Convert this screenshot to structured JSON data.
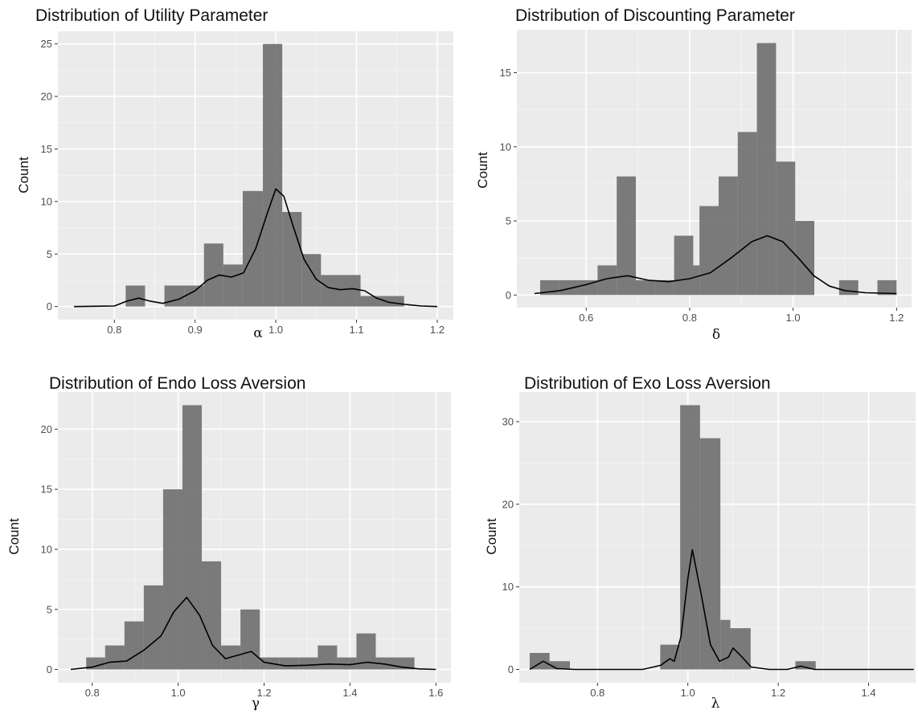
{
  "chart_data": [
    {
      "type": "bar",
      "title": "Distribution of Utility Parameter",
      "xlabel": "α",
      "ylabel": "Count",
      "xlim": [
        0.73,
        1.22
      ],
      "ylim": [
        -1.25,
        26.2
      ],
      "xticks": [
        0.8,
        0.9,
        1.0,
        1.1,
        1.2
      ],
      "xtick_labels": [
        "0.8",
        "0.9",
        "1.0",
        "1.1",
        "1.2"
      ],
      "yticks": [
        0,
        5,
        10,
        15,
        20,
        25
      ],
      "ytick_labels": [
        "0",
        "5",
        "10",
        "15",
        "20",
        "25"
      ],
      "grid": true,
      "bins": [
        {
          "x0": 0.814,
          "x1": 0.838,
          "count": 2
        },
        {
          "x0": 0.838,
          "x1": 0.862,
          "count": 0
        },
        {
          "x0": 0.862,
          "x1": 0.887,
          "count": 2
        },
        {
          "x0": 0.887,
          "x1": 0.911,
          "count": 2
        },
        {
          "x0": 0.911,
          "x1": 0.935,
          "count": 6
        },
        {
          "x0": 0.935,
          "x1": 0.959,
          "count": 4
        },
        {
          "x0": 0.959,
          "x1": 0.984,
          "count": 11
        },
        {
          "x0": 0.984,
          "x1": 1.008,
          "count": 25
        },
        {
          "x0": 1.008,
          "x1": 1.032,
          "count": 9
        },
        {
          "x0": 1.032,
          "x1": 1.056,
          "count": 5
        },
        {
          "x0": 1.056,
          "x1": 1.081,
          "count": 3
        },
        {
          "x0": 1.081,
          "x1": 1.105,
          "count": 3
        },
        {
          "x0": 1.105,
          "x1": 1.129,
          "count": 1
        },
        {
          "x0": 1.129,
          "x1": 1.159,
          "count": 1
        }
      ],
      "density_curve": {
        "x": [
          0.75,
          0.8,
          0.815,
          0.83,
          0.845,
          0.86,
          0.88,
          0.9,
          0.915,
          0.93,
          0.945,
          0.96,
          0.975,
          0.99,
          1.0,
          1.01,
          1.02,
          1.035,
          1.05,
          1.065,
          1.08,
          1.095,
          1.11,
          1.125,
          1.14,
          1.16,
          1.18,
          1.2
        ],
        "y": [
          0.0,
          0.05,
          0.5,
          0.8,
          0.5,
          0.3,
          0.7,
          1.5,
          2.5,
          3.0,
          2.8,
          3.2,
          5.5,
          9.0,
          11.2,
          10.5,
          8.0,
          4.5,
          2.6,
          1.8,
          1.6,
          1.7,
          1.5,
          0.8,
          0.4,
          0.2,
          0.05,
          0.0
        ]
      }
    },
    {
      "type": "bar",
      "title": "Distribution of Discounting Parameter",
      "xlabel": "δ",
      "ylabel": "Count",
      "xlim": [
        0.466,
        1.229
      ],
      "ylim": [
        -0.85,
        17.9
      ],
      "xticks": [
        0.6,
        0.8,
        1.0,
        1.2
      ],
      "xtick_labels": [
        "0.6",
        "0.8",
        "1.0",
        "1.2"
      ],
      "yticks": [
        0,
        5,
        10,
        15
      ],
      "ytick_labels": [
        "0",
        "5",
        "10",
        "15"
      ],
      "grid": true,
      "bins": [
        {
          "x0": 0.511,
          "x1": 0.548,
          "count": 1
        },
        {
          "x0": 0.548,
          "x1": 0.585,
          "count": 1
        },
        {
          "x0": 0.585,
          "x1": 0.622,
          "count": 1
        },
        {
          "x0": 0.622,
          "x1": 0.659,
          "count": 2
        },
        {
          "x0": 0.659,
          "x1": 0.696,
          "count": 8
        },
        {
          "x0": 0.696,
          "x1": 0.733,
          "count": 1
        },
        {
          "x0": 0.733,
          "x1": 0.77,
          "count": 1
        },
        {
          "x0": 0.77,
          "x1": 0.807,
          "count": 4
        },
        {
          "x0": 0.807,
          "x1": 0.819,
          "count": 2
        },
        {
          "x0": 0.819,
          "x1": 0.856,
          "count": 6
        },
        {
          "x0": 0.856,
          "x1": 0.893,
          "count": 8
        },
        {
          "x0": 0.893,
          "x1": 0.93,
          "count": 11
        },
        {
          "x0": 0.93,
          "x1": 0.967,
          "count": 17
        },
        {
          "x0": 0.967,
          "x1": 1.004,
          "count": 9
        },
        {
          "x0": 1.004,
          "x1": 1.041,
          "count": 5
        },
        {
          "x0": 1.041,
          "x1": 1.089,
          "count": 0
        },
        {
          "x0": 1.089,
          "x1": 1.126,
          "count": 1
        },
        {
          "x0": 1.126,
          "x1": 1.163,
          "count": 0
        },
        {
          "x0": 1.163,
          "x1": 1.2,
          "count": 1
        }
      ],
      "density_curve": {
        "x": [
          0.5,
          0.55,
          0.6,
          0.64,
          0.68,
          0.72,
          0.76,
          0.8,
          0.84,
          0.88,
          0.92,
          0.95,
          0.98,
          1.01,
          1.04,
          1.07,
          1.1,
          1.14,
          1.2
        ],
        "y": [
          0.1,
          0.3,
          0.7,
          1.1,
          1.3,
          1.0,
          0.9,
          1.1,
          1.5,
          2.5,
          3.6,
          4.0,
          3.6,
          2.5,
          1.3,
          0.6,
          0.3,
          0.15,
          0.1
        ]
      }
    },
    {
      "type": "bar",
      "title": "Distribution of Endo Loss Aversion",
      "xlabel": "γ",
      "ylabel": "Count",
      "xlim": [
        0.72,
        1.635
      ],
      "ylim": [
        -1.1,
        23.1
      ],
      "xticks": [
        0.8,
        1.0,
        1.2,
        1.4,
        1.6
      ],
      "xtick_labels": [
        "0.8",
        "1.0",
        "1.2",
        "1.4",
        "1.6"
      ],
      "yticks": [
        0,
        5,
        10,
        15,
        20
      ],
      "ytick_labels": [
        "0",
        "5",
        "10",
        "15",
        "20"
      ],
      "grid": true,
      "bins": [
        {
          "x0": 0.786,
          "x1": 0.83,
          "count": 1
        },
        {
          "x0": 0.83,
          "x1": 0.875,
          "count": 2
        },
        {
          "x0": 0.875,
          "x1": 0.92,
          "count": 4
        },
        {
          "x0": 0.92,
          "x1": 0.965,
          "count": 7
        },
        {
          "x0": 0.965,
          "x1": 1.01,
          "count": 15
        },
        {
          "x0": 1.01,
          "x1": 1.055,
          "count": 22
        },
        {
          "x0": 1.055,
          "x1": 1.1,
          "count": 9
        },
        {
          "x0": 1.1,
          "x1": 1.145,
          "count": 2
        },
        {
          "x0": 1.145,
          "x1": 1.19,
          "count": 5
        },
        {
          "x0": 1.19,
          "x1": 1.235,
          "count": 1
        },
        {
          "x0": 1.235,
          "x1": 1.28,
          "count": 1
        },
        {
          "x0": 1.28,
          "x1": 1.325,
          "count": 1
        },
        {
          "x0": 1.325,
          "x1": 1.37,
          "count": 2
        },
        {
          "x0": 1.37,
          "x1": 1.415,
          "count": 1
        },
        {
          "x0": 1.415,
          "x1": 1.46,
          "count": 3
        },
        {
          "x0": 1.46,
          "x1": 1.505,
          "count": 1
        },
        {
          "x0": 1.505,
          "x1": 1.55,
          "count": 1
        }
      ],
      "density_curve": {
        "x": [
          0.75,
          0.8,
          0.84,
          0.88,
          0.92,
          0.96,
          0.99,
          1.02,
          1.05,
          1.08,
          1.11,
          1.14,
          1.17,
          1.2,
          1.25,
          1.3,
          1.35,
          1.4,
          1.44,
          1.48,
          1.52,
          1.56,
          1.6
        ],
        "y": [
          0.0,
          0.2,
          0.6,
          0.7,
          1.6,
          2.8,
          4.8,
          6.0,
          4.5,
          2.0,
          0.9,
          1.2,
          1.5,
          0.6,
          0.3,
          0.35,
          0.45,
          0.4,
          0.6,
          0.45,
          0.2,
          0.05,
          0.0
        ]
      }
    },
    {
      "type": "bar",
      "title": "Distribution of Exo Loss Aversion",
      "xlabel": "λ",
      "ylabel": "Count",
      "xlim": [
        0.627,
        1.504
      ],
      "ylim": [
        -1.6,
        33.6
      ],
      "xticks": [
        0.8,
        1.0,
        1.2,
        1.4
      ],
      "xtick_labels": [
        "0.8",
        "1.0",
        "1.2",
        "1.4"
      ],
      "yticks": [
        0,
        10,
        20,
        30
      ],
      "ytick_labels": [
        "0",
        "10",
        "20",
        "30"
      ],
      "grid": true,
      "bins": [
        {
          "x0": 0.65,
          "x1": 0.694,
          "count": 2
        },
        {
          "x0": 0.694,
          "x1": 0.739,
          "count": 1
        },
        {
          "x0": 0.739,
          "x1": 0.939,
          "count": 0
        },
        {
          "x0": 0.939,
          "x1": 0.983,
          "count": 3
        },
        {
          "x0": 0.983,
          "x1": 1.027,
          "count": 32
        },
        {
          "x0": 1.027,
          "x1": 1.072,
          "count": 28
        },
        {
          "x0": 1.072,
          "x1": 1.094,
          "count": 6
        },
        {
          "x0": 1.094,
          "x1": 1.139,
          "count": 5
        },
        {
          "x0": 1.139,
          "x1": 1.238,
          "count": 0
        },
        {
          "x0": 1.238,
          "x1": 1.283,
          "count": 1
        }
      ],
      "density_curve": {
        "x": [
          0.65,
          0.68,
          0.71,
          0.75,
          0.8,
          0.9,
          0.94,
          0.96,
          0.97,
          0.985,
          1.0,
          1.01,
          1.03,
          1.05,
          1.07,
          1.09,
          1.1,
          1.12,
          1.14,
          1.18,
          1.22,
          1.25,
          1.28,
          1.32,
          1.4,
          1.5
        ],
        "y": [
          0.0,
          1.0,
          0.1,
          0.0,
          0.0,
          0.0,
          0.5,
          1.3,
          1.0,
          4.0,
          11.0,
          14.5,
          9.0,
          3.0,
          1.0,
          1.5,
          2.6,
          1.5,
          0.3,
          0.0,
          0.0,
          0.4,
          0.0,
          0.0,
          0.0,
          0.0
        ]
      }
    }
  ]
}
